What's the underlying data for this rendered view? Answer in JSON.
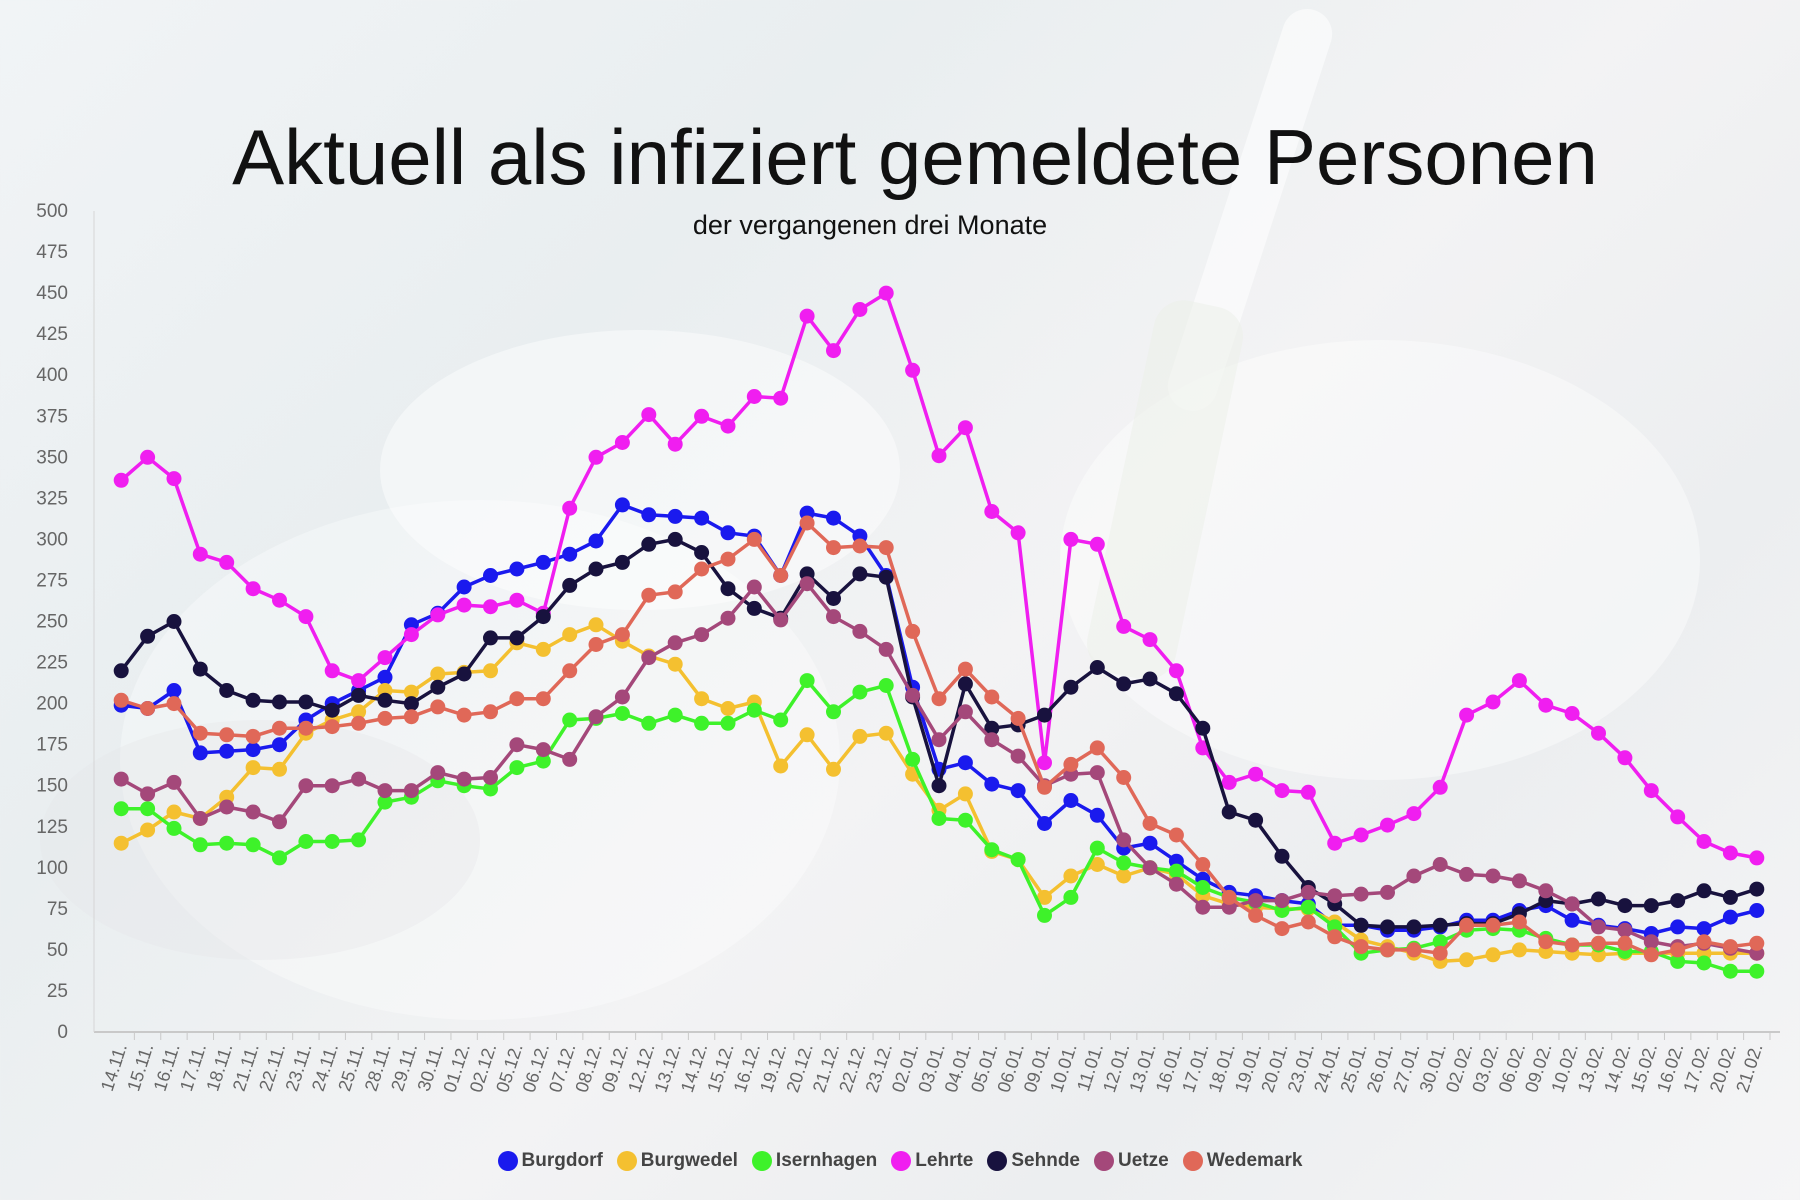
{
  "title": "Aktuell als infiziert gemeldete Personen",
  "subtitle": "der vergangenen drei Monate",
  "chart_data": {
    "type": "line",
    "title": "Aktuell als infiziert gemeldete Personen",
    "subtitle": "der vergangenen drei Monate",
    "xlabel": "",
    "ylabel": "",
    "ylim": [
      0,
      500
    ],
    "yticks": [
      0,
      25,
      50,
      75,
      100,
      125,
      150,
      175,
      200,
      225,
      250,
      275,
      300,
      325,
      350,
      375,
      400,
      425,
      450,
      475,
      500
    ],
    "grid": false,
    "legend_position": "bottom",
    "categories": [
      "14.11.",
      "15.11.",
      "16.11.",
      "17.11.",
      "18.11.",
      "21.11.",
      "22.11.",
      "23.11.",
      "24.11.",
      "25.11.",
      "28.11.",
      "29.11.",
      "30.11.",
      "01.12.",
      "02.12.",
      "05.12.",
      "06.12.",
      "07.12.",
      "08.12.",
      "09.12.",
      "12.12.",
      "13.12.",
      "14.12.",
      "15.12.",
      "16.12.",
      "19.12.",
      "20.12.",
      "21.12.",
      "22.12.",
      "23.12.",
      "02.01.",
      "03.01.",
      "04.01.",
      "05.01.",
      "06.01.",
      "09.01.",
      "10.01.",
      "11.01.",
      "12.01.",
      "13.01.",
      "16.01.",
      "17.01.",
      "18.01.",
      "19.01.",
      "20.01.",
      "23.01.",
      "24.01.",
      "25.01.",
      "26.01.",
      "27.01.",
      "30.01.",
      "02.02.",
      "03.02.",
      "06.02.",
      "09.02.",
      "10.02.",
      "13.02.",
      "14.02.",
      "15.02.",
      "16.02.",
      "17.02.",
      "20.02.",
      "21.02."
    ],
    "series": [
      {
        "name": "Burgdorf",
        "color": "#1a1aee",
        "values": [
          199,
          197,
          208,
          170,
          171,
          172,
          175,
          190,
          200,
          208,
          216,
          248,
          255,
          271,
          278,
          282,
          286,
          291,
          299,
          321,
          315,
          314,
          313,
          304,
          302,
          278,
          316,
          313,
          302,
          278,
          210,
          160,
          164,
          151,
          147,
          127,
          141,
          132,
          112,
          115,
          104,
          93,
          85,
          83,
          80,
          78,
          65,
          65,
          62,
          62,
          64,
          68,
          68,
          74,
          77,
          68,
          65,
          63,
          60,
          64,
          63,
          70,
          74
        ]
      },
      {
        "name": "Burgwedel",
        "color": "#f4c030",
        "values": [
          115,
          123,
          134,
          130,
          143,
          161,
          160,
          182,
          190,
          195,
          208,
          207,
          218,
          219,
          220,
          237,
          233,
          242,
          248,
          238,
          229,
          224,
          203,
          197,
          201,
          162,
          181,
          160,
          180,
          182,
          157,
          135,
          145,
          110,
          105,
          82,
          95,
          102,
          95,
          100,
          96,
          83,
          78,
          76,
          75,
          75,
          67,
          56,
          52,
          48,
          43,
          44,
          47,
          50,
          49,
          48,
          47,
          48,
          48,
          48,
          48,
          48,
          48
        ]
      },
      {
        "name": "Isernhagen",
        "color": "#3ef22a",
        "values": [
          136,
          136,
          124,
          114,
          115,
          114,
          106,
          116,
          116,
          117,
          140,
          143,
          153,
          150,
          148,
          161,
          165,
          190,
          191,
          194,
          188,
          193,
          188,
          188,
          196,
          190,
          214,
          195,
          207,
          211,
          166,
          130,
          129,
          111,
          105,
          71,
          82,
          112,
          103,
          100,
          98,
          88,
          82,
          79,
          74,
          76,
          64,
          48,
          50,
          51,
          55,
          62,
          63,
          62,
          57,
          53,
          53,
          49,
          49,
          43,
          42,
          37,
          37
        ]
      },
      {
        "name": "Lehrte",
        "color": "#f01ef0",
        "values": [
          336,
          350,
          337,
          291,
          286,
          270,
          263,
          253,
          220,
          214,
          228,
          242,
          254,
          260,
          259,
          263,
          255,
          319,
          350,
          359,
          376,
          358,
          375,
          369,
          387,
          386,
          436,
          415,
          440,
          450,
          403,
          351,
          368,
          317,
          304,
          164,
          300,
          297,
          247,
          239,
          220,
          173,
          152,
          157,
          147,
          146,
          115,
          120,
          126,
          133,
          149,
          193,
          201,
          214,
          199,
          194,
          182,
          167,
          147,
          131,
          116,
          109,
          106
        ]
      },
      {
        "name": "Sehnde",
        "color": "#18123e",
        "values": [
          220,
          241,
          250,
          221,
          208,
          202,
          201,
          201,
          196,
          205,
          202,
          200,
          210,
          218,
          240,
          240,
          253,
          272,
          282,
          286,
          297,
          300,
          292,
          270,
          258,
          252,
          279,
          264,
          279,
          277,
          204,
          150,
          212,
          185,
          187,
          193,
          210,
          222,
          212,
          215,
          206,
          185,
          134,
          129,
          107,
          88,
          78,
          65,
          64,
          64,
          65,
          66,
          66,
          72,
          80,
          78,
          81,
          77,
          77,
          80,
          86,
          82,
          87
        ]
      },
      {
        "name": "Uetze",
        "color": "#a4487a",
        "values": [
          154,
          145,
          152,
          130,
          137,
          134,
          128,
          150,
          150,
          154,
          147,
          147,
          158,
          154,
          155,
          175,
          172,
          166,
          192,
          204,
          228,
          237,
          242,
          252,
          271,
          251,
          273,
          253,
          244,
          233,
          205,
          178,
          195,
          178,
          168,
          150,
          157,
          158,
          117,
          100,
          90,
          76,
          76,
          80,
          80,
          85,
          83,
          84,
          85,
          95,
          102,
          96,
          95,
          92,
          86,
          78,
          64,
          62,
          55,
          52,
          54,
          51,
          48
        ]
      },
      {
        "name": "Wedemark",
        "color": "#e06858",
        "values": [
          202,
          197,
          200,
          182,
          181,
          180,
          185,
          185,
          186,
          188,
          191,
          192,
          198,
          193,
          195,
          203,
          203,
          220,
          236,
          242,
          266,
          268,
          282,
          288,
          300,
          278,
          310,
          295,
          296,
          295,
          244,
          203,
          221,
          204,
          191,
          149,
          163,
          173,
          155,
          127,
          120,
          102,
          82,
          71,
          63,
          67,
          58,
          52,
          50,
          50,
          48,
          65,
          65,
          67,
          55,
          53,
          54,
          54,
          47,
          50,
          55,
          52,
          54
        ]
      }
    ]
  }
}
